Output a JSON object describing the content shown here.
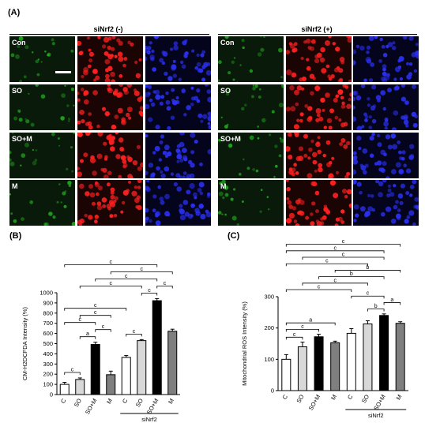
{
  "figure": {
    "panel_a": "(A)",
    "panel_b": "(B)",
    "panel_c": "(C)",
    "group_left": "siNrf2 (-)",
    "group_right": "siNrf2 (+)",
    "row_labels": [
      "Con",
      "SO",
      "SO+M",
      "M"
    ],
    "channel_colors": {
      "green": "#21c21e",
      "red": "#ff2020",
      "blue": "#2a2ff0"
    }
  },
  "chart_data": [
    {
      "type": "bar",
      "ylabel": "CM-H2DCFDA Intensity (%)",
      "ylim": [
        0,
        1000
      ],
      "yticks": [
        "0",
        "100",
        "200",
        "300",
        "400",
        "500",
        "600",
        "700",
        "800",
        "900",
        "1000"
      ],
      "categories": [
        "C",
        "SO",
        "SO+M",
        "M",
        "C",
        "SO",
        "SO+M",
        "M"
      ],
      "group_label": "siNrf2",
      "values": [
        100,
        148,
        492,
        195,
        365,
        530,
        922,
        622
      ],
      "errors": [
        20,
        15,
        22,
        35,
        18,
        10,
        20,
        20
      ],
      "bar_colors": [
        "#ffffff",
        "#d8d8d8",
        "#000000",
        "#7f7f7f",
        "#ffffff",
        "#d8d8d8",
        "#000000",
        "#7f7f7f"
      ],
      "comparisons": [
        {
          "from": 0,
          "to": 1,
          "label": "c"
        },
        {
          "from": 0,
          "to": 2,
          "label": "c"
        },
        {
          "from": 1,
          "to": 2,
          "label": "a"
        },
        {
          "from": 2,
          "to": 3,
          "label": "c"
        },
        {
          "from": 1,
          "to": 3,
          "label": "c"
        },
        {
          "from": 0,
          "to": 4,
          "label": "c"
        },
        {
          "from": 0,
          "to": 6,
          "label": "c"
        },
        {
          "from": 5,
          "to": 6,
          "label": "c"
        },
        {
          "from": 6,
          "to": 7,
          "label": "c"
        },
        {
          "from": 1,
          "to": 5,
          "label": "c"
        },
        {
          "from": 2,
          "to": 6,
          "label": "c"
        },
        {
          "from": 3,
          "to": 7,
          "label": "c"
        },
        {
          "from": 4,
          "to": 5,
          "label": "c"
        }
      ]
    },
    {
      "type": "bar",
      "ylabel": "Mitochondrial ROS Intensity (%)",
      "ylim": [
        0,
        300
      ],
      "yticks": [
        "0",
        "100",
        "200",
        "300"
      ],
      "categories": [
        "C",
        "SO",
        "SO+M",
        "M",
        "C",
        "SO",
        "SO+M",
        "M"
      ],
      "group_label": "siNrf2",
      "values": [
        100,
        140,
        172,
        153,
        183,
        213,
        240,
        215
      ],
      "errors": [
        15,
        15,
        8,
        5,
        15,
        10,
        5,
        5
      ],
      "bar_colors": [
        "#ffffff",
        "#d8d8d8",
        "#000000",
        "#7f7f7f",
        "#ffffff",
        "#d8d8d8",
        "#000000",
        "#7f7f7f"
      ],
      "comparisons": [
        {
          "from": 0,
          "to": 1,
          "label": "c"
        },
        {
          "from": 0,
          "to": 2,
          "label": "c"
        },
        {
          "from": 0,
          "to": 3,
          "label": "a"
        },
        {
          "from": 0,
          "to": 4,
          "label": "c"
        },
        {
          "from": 0,
          "to": 5,
          "label": "c"
        },
        {
          "from": 0,
          "to": 6,
          "label": "c"
        },
        {
          "from": 0,
          "to": 7,
          "label": "c"
        },
        {
          "from": 1,
          "to": 5,
          "label": "c"
        },
        {
          "from": 1,
          "to": 6,
          "label": "c"
        },
        {
          "from": 2,
          "to": 6,
          "label": "b"
        },
        {
          "from": 3,
          "to": 7,
          "label": "b"
        },
        {
          "from": 4,
          "to": 6,
          "label": "c"
        },
        {
          "from": 5,
          "to": 6,
          "label": "b"
        },
        {
          "from": 6,
          "to": 7,
          "label": "a"
        }
      ]
    }
  ]
}
